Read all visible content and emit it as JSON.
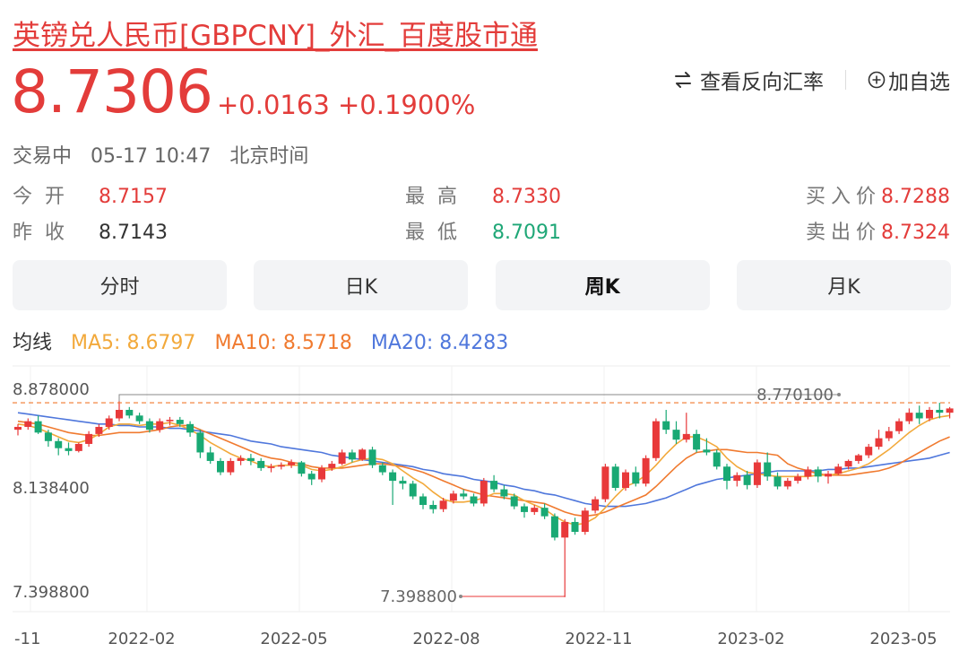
{
  "header": {
    "title": "英镑兑人民币[GBPCNY]_外汇_百度股市通",
    "price": "8.7306",
    "change_abs": "+0.0163",
    "change_pct": "+0.1900%",
    "reverse_rate_label": "查看反向汇率",
    "add_watch_label": "加自选",
    "status": "交易中",
    "time": "05-17 10:47",
    "timezone": "北京时间"
  },
  "stats": {
    "open_label": "今开",
    "open": "8.7157",
    "prev_close_label": "昨收",
    "prev_close": "8.7143",
    "high_label": "最高",
    "high": "8.7330",
    "low_label": "最低",
    "low": "8.7091",
    "bid_label": "买入价",
    "bid": "8.7288",
    "ask_label": "卖出价",
    "ask": "8.7324"
  },
  "tabs": [
    {
      "label": "分时"
    },
    {
      "label": "日K"
    },
    {
      "label": "周K"
    },
    {
      "label": "月K"
    }
  ],
  "active_tab": 2,
  "ma": {
    "label": "均线",
    "ma5": "MA5: 8.6797",
    "ma10": "MA10: 8.5718",
    "ma20": "MA20: 8.4283"
  },
  "colors": {
    "up": "#e8393a",
    "down": "#19a974",
    "ma5": "#f2a93b",
    "ma10": "#f07a2f",
    "ma20": "#4f77dc",
    "last_line": "#f0782d"
  },
  "chart_data": {
    "type": "candlestick",
    "y_ticks": [
      "8.878000",
      "8.138400",
      "7.398800"
    ],
    "x_ticks": [
      "-11",
      "2022-02",
      "2022-05",
      "2022-08",
      "2022-11",
      "2023-02",
      "2023-05"
    ],
    "ylim": [
      7.3988,
      8.878
    ],
    "max_annotation": "8.770100",
    "min_annotation": "7.398800",
    "candles_ohlc": [
      [
        8.58,
        8.62,
        8.54,
        8.6
      ],
      [
        8.6,
        8.66,
        8.58,
        8.64
      ],
      [
        8.64,
        8.68,
        8.55,
        8.56
      ],
      [
        8.56,
        8.58,
        8.46,
        8.5
      ],
      [
        8.5,
        8.52,
        8.4,
        8.45
      ],
      [
        8.45,
        8.49,
        8.4,
        8.43
      ],
      [
        8.43,
        8.49,
        8.42,
        8.48
      ],
      [
        8.48,
        8.57,
        8.46,
        8.55
      ],
      [
        8.55,
        8.62,
        8.53,
        8.6
      ],
      [
        8.6,
        8.68,
        8.58,
        8.66
      ],
      [
        8.66,
        8.78,
        8.64,
        8.72
      ],
      [
        8.72,
        8.74,
        8.66,
        8.68
      ],
      [
        8.68,
        8.7,
        8.62,
        8.64
      ],
      [
        8.64,
        8.66,
        8.56,
        8.58
      ],
      [
        8.58,
        8.66,
        8.56,
        8.64
      ],
      [
        8.64,
        8.67,
        8.61,
        8.65
      ],
      [
        8.65,
        8.67,
        8.6,
        8.62
      ],
      [
        8.62,
        8.64,
        8.53,
        8.56
      ],
      [
        8.56,
        8.58,
        8.38,
        8.42
      ],
      [
        8.42,
        8.46,
        8.34,
        8.36
      ],
      [
        8.36,
        8.38,
        8.26,
        8.28
      ],
      [
        8.28,
        8.38,
        8.26,
        8.36
      ],
      [
        8.36,
        8.4,
        8.33,
        8.38
      ],
      [
        8.38,
        8.41,
        8.33,
        8.36
      ],
      [
        8.36,
        8.38,
        8.29,
        8.31
      ],
      [
        8.31,
        8.34,
        8.28,
        8.32
      ],
      [
        8.32,
        8.35,
        8.3,
        8.33
      ],
      [
        8.33,
        8.37,
        8.31,
        8.35
      ],
      [
        8.35,
        8.36,
        8.25,
        8.27
      ],
      [
        8.27,
        8.29,
        8.19,
        8.23
      ],
      [
        8.23,
        8.33,
        8.21,
        8.31
      ],
      [
        8.31,
        8.36,
        8.29,
        8.34
      ],
      [
        8.34,
        8.44,
        8.33,
        8.42
      ],
      [
        8.42,
        8.44,
        8.35,
        8.37
      ],
      [
        8.37,
        8.45,
        8.36,
        8.44
      ],
      [
        8.44,
        8.46,
        8.31,
        8.33
      ],
      [
        8.33,
        8.35,
        8.26,
        8.28
      ],
      [
        8.28,
        8.3,
        8.05,
        8.22
      ],
      [
        8.22,
        8.25,
        8.16,
        8.2
      ],
      [
        8.2,
        8.22,
        8.09,
        8.11
      ],
      [
        8.11,
        8.13,
        8.02,
        8.05
      ],
      [
        8.05,
        8.08,
        7.99,
        8.02
      ],
      [
        8.02,
        8.1,
        8.0,
        8.08
      ],
      [
        8.08,
        8.15,
        8.06,
        8.13
      ],
      [
        8.13,
        8.16,
        8.09,
        8.11
      ],
      [
        8.11,
        8.13,
        8.04,
        8.06
      ],
      [
        8.06,
        8.24,
        8.04,
        8.22
      ],
      [
        8.22,
        8.26,
        8.14,
        8.16
      ],
      [
        8.16,
        8.19,
        8.09,
        8.11
      ],
      [
        8.11,
        8.13,
        8.02,
        8.04
      ],
      [
        8.04,
        8.06,
        7.96,
        8.0
      ],
      [
        8.0,
        8.05,
        7.98,
        8.03
      ],
      [
        8.03,
        8.06,
        7.95,
        7.97
      ],
      [
        7.97,
        7.99,
        7.8,
        7.82
      ],
      [
        7.82,
        7.95,
        7.4,
        7.93
      ],
      [
        7.93,
        7.96,
        7.84,
        7.86
      ],
      [
        7.86,
        8.03,
        7.84,
        8.01
      ],
      [
        8.01,
        8.11,
        7.99,
        8.09
      ],
      [
        8.09,
        8.34,
        8.07,
        8.32
      ],
      [
        8.32,
        8.34,
        8.15,
        8.17
      ],
      [
        8.17,
        8.3,
        8.15,
        8.28
      ],
      [
        8.28,
        8.32,
        8.18,
        8.2
      ],
      [
        8.2,
        8.4,
        8.18,
        8.38
      ],
      [
        8.38,
        8.66,
        8.36,
        8.64
      ],
      [
        8.64,
        8.72,
        8.55,
        8.58
      ],
      [
        8.58,
        8.64,
        8.48,
        8.51
      ],
      [
        8.51,
        8.7,
        8.49,
        8.55
      ],
      [
        8.55,
        8.58,
        8.42,
        8.44
      ],
      [
        8.44,
        8.52,
        8.4,
        8.42
      ],
      [
        8.42,
        8.44,
        8.3,
        8.32
      ],
      [
        8.32,
        8.34,
        8.16,
        8.22
      ],
      [
        8.22,
        8.28,
        8.18,
        8.26
      ],
      [
        8.26,
        8.29,
        8.16,
        8.19
      ],
      [
        8.19,
        8.37,
        8.17,
        8.35
      ],
      [
        8.35,
        8.42,
        8.22,
        8.25
      ],
      [
        8.25,
        8.28,
        8.16,
        8.18
      ],
      [
        8.18,
        8.24,
        8.16,
        8.22
      ],
      [
        8.22,
        8.27,
        8.2,
        8.25
      ],
      [
        8.25,
        8.32,
        8.23,
        8.3
      ],
      [
        8.3,
        8.32,
        8.21,
        8.25
      ],
      [
        8.25,
        8.29,
        8.2,
        8.27
      ],
      [
        8.27,
        8.34,
        8.26,
        8.32
      ],
      [
        8.32,
        8.37,
        8.3,
        8.36
      ],
      [
        8.36,
        8.41,
        8.34,
        8.4
      ],
      [
        8.4,
        8.48,
        8.38,
        8.46
      ],
      [
        8.46,
        8.58,
        8.44,
        8.52
      ],
      [
        8.52,
        8.6,
        8.5,
        8.57
      ],
      [
        8.57,
        8.66,
        8.55,
        8.64
      ],
      [
        8.64,
        8.73,
        8.62,
        8.7
      ],
      [
        8.7,
        8.75,
        8.62,
        8.66
      ],
      [
        8.66,
        8.74,
        8.64,
        8.72
      ],
      [
        8.72,
        8.77,
        8.66,
        8.7
      ],
      [
        8.7,
        8.74,
        8.66,
        8.73
      ]
    ],
    "ma5": [
      8.62,
      8.61,
      8.59,
      8.56,
      8.53,
      8.5,
      8.49,
      8.51,
      8.55,
      8.6,
      8.62,
      8.62,
      8.61,
      8.62,
      8.62,
      8.63,
      8.61,
      8.58,
      8.54,
      8.49,
      8.45,
      8.41,
      8.38,
      8.36,
      8.33,
      8.32,
      8.33,
      8.33,
      8.33,
      8.3,
      8.29,
      8.3,
      8.32,
      8.35,
      8.37,
      8.38,
      8.37,
      8.34,
      8.29,
      8.24,
      8.2,
      8.14,
      8.09,
      8.07,
      8.07,
      8.08,
      8.1,
      8.13,
      8.13,
      8.12,
      8.08,
      8.05,
      8.02,
      7.97,
      7.93,
      7.91,
      7.92,
      7.96,
      8.03,
      8.11,
      8.18,
      8.21,
      8.26,
      8.33,
      8.41,
      8.48,
      8.53,
      8.53,
      8.5,
      8.46,
      8.38,
      8.32,
      8.28,
      8.27,
      8.26,
      8.25,
      8.25,
      8.25,
      8.25,
      8.26,
      8.26,
      8.27,
      8.29,
      8.31,
      8.34,
      8.39,
      8.44,
      8.5,
      8.56,
      8.61,
      8.65,
      8.67,
      8.68
    ],
    "ma10": [
      8.64,
      8.63,
      8.62,
      8.6,
      8.58,
      8.56,
      8.55,
      8.54,
      8.54,
      8.55,
      8.56,
      8.56,
      8.56,
      8.57,
      8.58,
      8.6,
      8.61,
      8.61,
      8.58,
      8.55,
      8.52,
      8.49,
      8.46,
      8.43,
      8.4,
      8.38,
      8.37,
      8.35,
      8.34,
      8.32,
      8.31,
      8.31,
      8.31,
      8.32,
      8.33,
      8.34,
      8.34,
      8.33,
      8.32,
      8.3,
      8.28,
      8.25,
      8.22,
      8.19,
      8.16,
      8.14,
      8.12,
      8.11,
      8.1,
      8.09,
      8.08,
      8.07,
      8.06,
      8.03,
      8.0,
      7.98,
      7.97,
      7.98,
      8.0,
      8.03,
      8.06,
      8.09,
      8.12,
      8.18,
      8.25,
      8.32,
      8.38,
      8.42,
      8.43,
      8.44,
      8.44,
      8.43,
      8.42,
      8.42,
      8.41,
      8.4,
      8.34,
      8.31,
      8.29,
      8.27,
      8.26,
      8.26,
      8.26,
      8.27,
      8.28,
      8.29,
      8.31,
      8.34,
      8.38,
      8.42,
      8.46,
      8.5,
      8.53
    ],
    "ma20": [
      8.7,
      8.69,
      8.68,
      8.67,
      8.66,
      8.65,
      8.64,
      8.63,
      8.62,
      8.62,
      8.61,
      8.61,
      8.6,
      8.6,
      8.6,
      8.59,
      8.59,
      8.58,
      8.57,
      8.56,
      8.55,
      8.54,
      8.52,
      8.5,
      8.49,
      8.48,
      8.46,
      8.45,
      8.44,
      8.43,
      8.42,
      8.4,
      8.39,
      8.38,
      8.37,
      8.36,
      8.35,
      8.34,
      8.33,
      8.32,
      8.3,
      8.29,
      8.27,
      8.26,
      8.25,
      8.23,
      8.22,
      8.21,
      8.19,
      8.18,
      8.16,
      8.15,
      8.13,
      8.12,
      8.1,
      8.08,
      8.06,
      8.05,
      8.04,
      8.04,
      8.04,
      8.05,
      8.06,
      8.08,
      8.1,
      8.13,
      8.16,
      8.19,
      8.21,
      8.23,
      8.24,
      8.25,
      8.26,
      8.27,
      8.28,
      8.29,
      8.29,
      8.29,
      8.29,
      8.29,
      8.3,
      8.3,
      8.31,
      8.31,
      8.32,
      8.33,
      8.34,
      8.35,
      8.36,
      8.37,
      8.38,
      8.4,
      8.42
    ]
  }
}
